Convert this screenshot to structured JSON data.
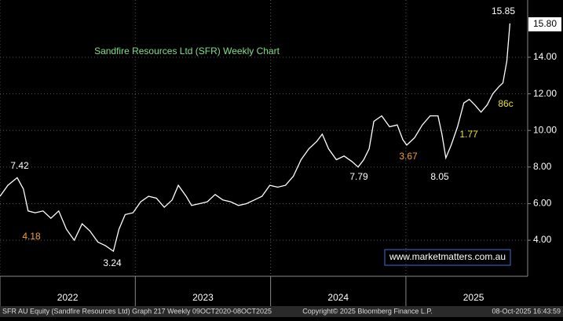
{
  "chart_data": {
    "type": "line",
    "title": "Sandfire Resources Ltd (SFR) Weekly Chart",
    "title_color": "#7fe08a",
    "x": [
      2022.0,
      2022.058,
      2022.127,
      2022.173,
      2022.208,
      2022.26,
      2022.318,
      2022.376,
      2022.434,
      2022.491,
      2022.549,
      2022.607,
      2022.665,
      2022.723,
      2022.78,
      2022.838,
      2022.879,
      2022.925,
      2022.983,
      2023.04,
      2023.098,
      2023.156,
      2023.214,
      2023.272,
      2023.318,
      2023.376,
      2023.416,
      2023.474,
      2023.532,
      2023.59,
      2023.647,
      2023.705,
      2023.763,
      2023.821,
      2023.879,
      2023.936,
      2023.994,
      2024.052,
      2024.11,
      2024.168,
      2024.225,
      2024.283,
      2024.341,
      2024.382,
      2024.428,
      2024.486,
      2024.543,
      2024.601,
      2024.647,
      2024.688,
      2024.728,
      2024.763,
      2024.821,
      2024.879,
      2024.936,
      2024.977,
      2025.006,
      2025.064,
      2025.121,
      2025.179,
      2025.237,
      2025.266,
      2025.295,
      2025.335,
      2025.382,
      2025.428,
      2025.468,
      2025.509,
      2025.555,
      2025.601,
      2025.642,
      2025.688,
      2025.717,
      2025.746,
      2025.769
    ],
    "series": [
      {
        "name": "SFR",
        "color": "#ffffff",
        "values": [
          6.4,
          7.0,
          7.42,
          6.8,
          5.6,
          5.5,
          5.6,
          5.2,
          5.6,
          4.6,
          4.0,
          4.9,
          4.5,
          3.9,
          3.7,
          3.4,
          4.6,
          5.4,
          5.5,
          6.1,
          6.4,
          6.3,
          5.8,
          6.2,
          7.0,
          6.4,
          5.9,
          6.0,
          6.1,
          6.5,
          6.2,
          6.1,
          5.9,
          6.0,
          6.2,
          6.4,
          7.0,
          6.9,
          7.0,
          7.5,
          8.4,
          9.0,
          9.4,
          9.8,
          9.0,
          8.4,
          8.6,
          8.3,
          8.0,
          8.4,
          9.0,
          10.5,
          10.8,
          10.2,
          10.3,
          9.5,
          9.2,
          9.6,
          10.3,
          10.8,
          10.8,
          9.8,
          8.5,
          9.2,
          10.2,
          11.5,
          11.7,
          11.4,
          11.0,
          11.4,
          12.0,
          12.4,
          12.6,
          13.8,
          15.85
        ]
      }
    ],
    "xlim": [
      2022.0,
      2025.9
    ],
    "ylim": [
      2.03,
      17.13
    ],
    "yticks": [
      {
        "value": 4,
        "label": "4.00"
      },
      {
        "value": 6,
        "label": "6.00"
      },
      {
        "value": 8,
        "label": "8.00"
      },
      {
        "value": 10,
        "label": "10.00"
      },
      {
        "value": 12,
        "label": "12.00"
      },
      {
        "value": 14,
        "label": "14.00"
      }
    ],
    "xticks": [
      {
        "value": 2022,
        "label": "2022"
      },
      {
        "value": 2023,
        "label": "2023"
      },
      {
        "value": 2024,
        "label": "2024"
      },
      {
        "value": 2025,
        "label": "2025"
      }
    ],
    "grid": true,
    "last_price": {
      "value": 15.8,
      "label": "15.80"
    },
    "annotations": [
      {
        "text": "15.85",
        "color": "#ffffff"
      },
      {
        "text": "7.42",
        "color": "#ffffff"
      },
      {
        "text": "4.18",
        "color": "#f0a030"
      },
      {
        "text": "3.24",
        "color": "#ffffff"
      },
      {
        "text": "7.79",
        "color": "#ffffff"
      },
      {
        "text": "3.67",
        "color": "#f0a030"
      },
      {
        "text": "8.05",
        "color": "#ffffff"
      },
      {
        "text": "1.77",
        "color": "#e8e030"
      },
      {
        "text": "86c",
        "color": "#e8e030"
      }
    ],
    "watermark": "www.marketmatters.com.au",
    "footer": {
      "left": "SFR AU Equity (Sandfire Resources Ltd) Graph 217 Weekly 09OCT2020-08OCT2025",
      "center": "Copyright© 2025 Bloomberg Finance L.P.",
      "right": "08-Oct-2025 16:43:59"
    }
  }
}
